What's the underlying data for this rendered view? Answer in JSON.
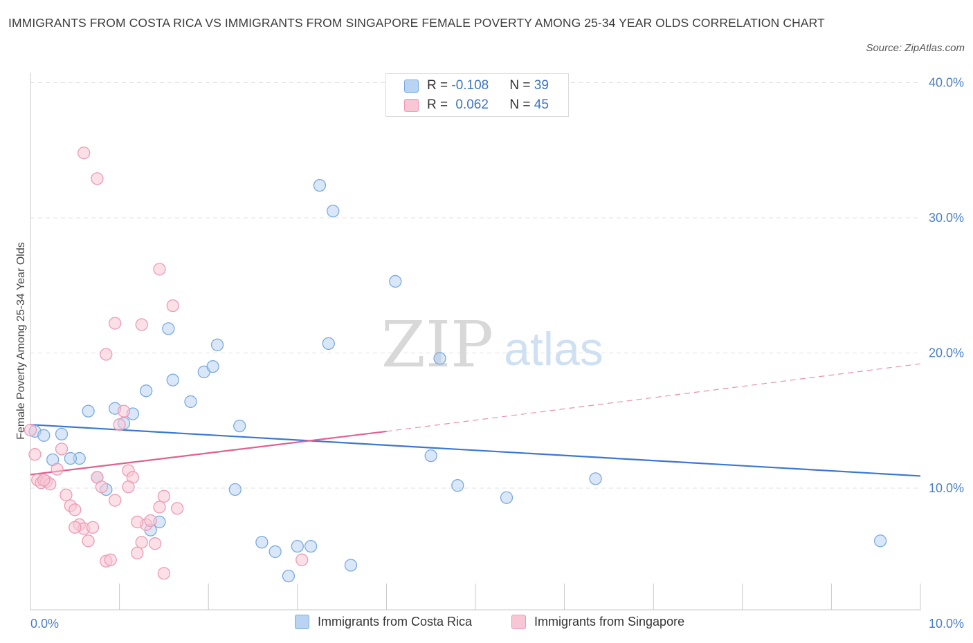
{
  "title": "IMMIGRANTS FROM COSTA RICA VS IMMIGRANTS FROM SINGAPORE FEMALE POVERTY AMONG 25-34 YEAR OLDS CORRELATION CHART",
  "source": "Source: ZipAtlas.com",
  "watermark": {
    "zip": "ZIP",
    "atlas": "atlas"
  },
  "legend": {
    "rows": [
      {
        "r_label": "R = ",
        "r_value": "-0.108",
        "n_label": "N = ",
        "n_value": "39",
        "color": "#a9c8ef"
      },
      {
        "r_label": "R = ",
        "r_value": "0.062",
        "n_label": "N = ",
        "n_value": "45",
        "color": "#f5b8cb"
      }
    ]
  },
  "bottom_legend": [
    {
      "label": "Immigrants from Costa Rica",
      "color": "#a9c8ef"
    },
    {
      "label": "Immigrants from Singapore",
      "color": "#f5b8cb"
    }
  ],
  "chart_data": {
    "type": "scatter",
    "ylabel": "Female Poverty Among 25-34 Year Olds",
    "xlim": [
      0,
      10
    ],
    "ylim": [
      1.0,
      41.0
    ],
    "x_tick_labels": [
      {
        "value": 0,
        "label": "0.0%"
      },
      {
        "value": 10,
        "label": "10.0%"
      }
    ],
    "y_tick_labels": [
      {
        "value": 10,
        "label": "10.0%"
      },
      {
        "value": 20,
        "label": "20.0%"
      },
      {
        "value": 30,
        "label": "30.0%"
      },
      {
        "value": 40,
        "label": "40.0%"
      }
    ],
    "grid": "horizontal dashed",
    "series": [
      {
        "name": "Immigrants from Costa Rica",
        "color": "#7aaae0",
        "fill": "#b9d3f2",
        "trend": {
          "x": [
            0,
            10
          ],
          "y": [
            14.7,
            10.9
          ],
          "style": "solid",
          "color": "#3a78cc"
        },
        "points": [
          [
            0.05,
            14.2
          ],
          [
            0.15,
            13.9
          ],
          [
            0.35,
            14.0
          ],
          [
            0.25,
            12.1
          ],
          [
            0.55,
            12.2
          ],
          [
            0.45,
            12.2
          ],
          [
            0.65,
            15.7
          ],
          [
            0.95,
            15.9
          ],
          [
            1.05,
            14.8
          ],
          [
            1.15,
            15.5
          ],
          [
            1.3,
            17.2
          ],
          [
            0.75,
            10.8
          ],
          [
            0.85,
            9.9
          ],
          [
            1.6,
            18.0
          ],
          [
            1.8,
            16.4
          ],
          [
            1.95,
            18.6
          ],
          [
            2.05,
            19.0
          ],
          [
            2.1,
            20.6
          ],
          [
            2.35,
            14.6
          ],
          [
            1.55,
            21.8
          ],
          [
            2.3,
            9.9
          ],
          [
            3.35,
            20.7
          ],
          [
            1.35,
            6.9
          ],
          [
            1.45,
            7.5
          ],
          [
            2.6,
            6.0
          ],
          [
            2.75,
            5.3
          ],
          [
            2.9,
            3.5
          ],
          [
            3.0,
            5.7
          ],
          [
            3.15,
            5.7
          ],
          [
            3.6,
            4.3
          ],
          [
            3.25,
            32.4
          ],
          [
            3.4,
            30.5
          ],
          [
            4.1,
            25.3
          ],
          [
            4.5,
            12.4
          ],
          [
            4.6,
            19.6
          ],
          [
            4.8,
            10.2
          ],
          [
            5.35,
            9.3
          ],
          [
            6.35,
            10.7
          ],
          [
            9.55,
            6.1
          ]
        ]
      },
      {
        "name": "Immigrants from Singapore",
        "color": "#ee9ab4",
        "fill": "#f8c6d5",
        "trend": {
          "x": [
            0,
            4.0,
            10
          ],
          "y": [
            11.0,
            14.2,
            19.2
          ],
          "style": "solid-then-dashed",
          "color": "#e0608d"
        },
        "points": [
          [
            0.0,
            14.3
          ],
          [
            0.05,
            12.5
          ],
          [
            0.08,
            10.6
          ],
          [
            0.12,
            10.4
          ],
          [
            0.18,
            10.5
          ],
          [
            0.22,
            10.3
          ],
          [
            0.3,
            11.4
          ],
          [
            0.35,
            12.9
          ],
          [
            0.4,
            9.5
          ],
          [
            0.45,
            8.7
          ],
          [
            0.5,
            8.4
          ],
          [
            0.55,
            7.3
          ],
          [
            0.6,
            7.0
          ],
          [
            0.65,
            6.1
          ],
          [
            0.7,
            7.1
          ],
          [
            0.75,
            10.8
          ],
          [
            0.8,
            10.1
          ],
          [
            0.85,
            4.6
          ],
          [
            0.9,
            4.7
          ],
          [
            0.95,
            9.1
          ],
          [
            1.0,
            14.7
          ],
          [
            1.05,
            15.7
          ],
          [
            1.1,
            11.3
          ],
          [
            1.15,
            10.8
          ],
          [
            1.2,
            5.2
          ],
          [
            1.25,
            6.0
          ],
          [
            1.3,
            7.3
          ],
          [
            1.35,
            7.6
          ],
          [
            1.4,
            5.9
          ],
          [
            1.45,
            8.6
          ],
          [
            1.5,
            9.4
          ],
          [
            0.6,
            34.8
          ],
          [
            0.75,
            32.9
          ],
          [
            0.95,
            22.2
          ],
          [
            1.25,
            22.1
          ],
          [
            1.45,
            26.2
          ],
          [
            1.6,
            23.5
          ],
          [
            1.5,
            3.7
          ],
          [
            1.65,
            8.5
          ],
          [
            0.85,
            19.9
          ],
          [
            1.1,
            10.1
          ],
          [
            3.05,
            4.7
          ],
          [
            0.15,
            10.6
          ],
          [
            1.2,
            7.5
          ],
          [
            0.5,
            7.1
          ]
        ]
      }
    ]
  }
}
